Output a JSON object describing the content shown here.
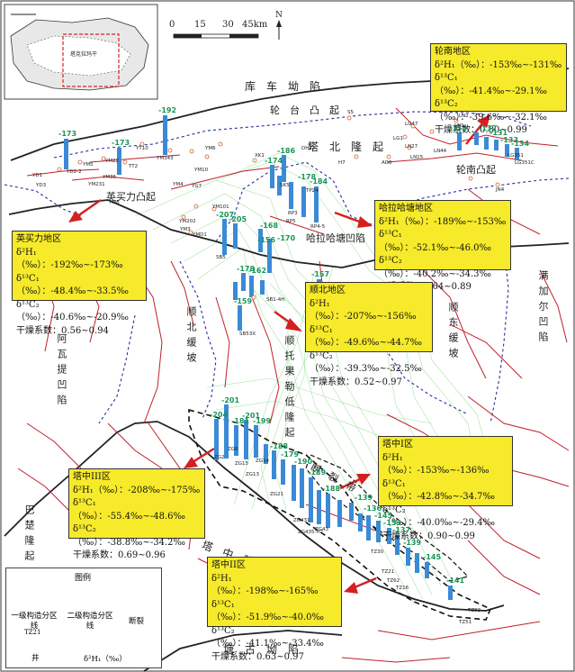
{
  "scale": {
    "ticks": [
      "0",
      "15",
      "30",
      "45km"
    ]
  },
  "north": "N",
  "regions": {
    "kuche": "库　车　坳　陷",
    "lunwa": "轮　台　凸　起",
    "tabei": "塔　北　隆　起",
    "halahatang_sag": "哈拉哈塘凹陷",
    "yingmaili_uplift": "英买力凸起",
    "lunnan_uplift": "轮南凸起",
    "manjiaer": "满加尔凹陷",
    "awati": "阿瓦提凹陷",
    "shunbei": "顺北缓坡",
    "shundong": "顺东缓坡",
    "shuntuo": "顺托果勒低隆起",
    "tazhong": "塔　中　隆　起",
    "bachu": "巴楚隆起",
    "tanggu": "塘　古　坳　陷",
    "fault_belt": "断　裂　带"
  },
  "boxes": [
    {
      "id": "lunnan",
      "title": "轮南地区",
      "h1": "δ²H₁（‰）：-153‰~-131‰",
      "c1": "δ¹³C₁（‰）：-41.4‰~-29.1‰",
      "c2": "δ¹³C₂（‰）：-39.6‰~-32.1‰",
      "dry": "干燥系数：0.80~0.99"
    },
    {
      "id": "halahatang",
      "title": "哈拉哈塘地区",
      "h1": "δ²H₁（‰）：-189‰~-153‰",
      "c1": "δ¹³C₁（‰）：-52.1‰~-46.0‰",
      "c2": "δ¹³C₂（‰）：-40.2‰~-34.3‰",
      "dry": "干燥系数：0.64~0.89"
    },
    {
      "id": "yingmaili",
      "title": "英买力地区",
      "h1": "δ²H₁（‰）：-192‰~-173‰",
      "c1": "δ¹³C₁（‰）：-48.4‰~-33.5‰",
      "c2": "δ¹³C₂（‰）：-40.6‰~-20.9‰",
      "dry": "干燥系数：0.56~0.94"
    },
    {
      "id": "shunbei",
      "title": "顺北地区",
      "h1": "δ²H₁（‰）：-207‰~-156‰",
      "c1": "δ¹³C₁（‰）：-49.6‰~-44.7‰",
      "c2": "δ¹³C₂（‰）：-39.3‰~-32.5‰",
      "dry": "干燥系数：0.52~0.97"
    },
    {
      "id": "tazhong1",
      "title": "塔中I区",
      "h1": "δ²H₁（‰）：-153‰~-136‰",
      "c1": "δ¹³C₁（‰）：-42.8‰~-34.7‰",
      "c2": "δ¹³C₂（‰）：-40.0‰~-29.4‰",
      "dry": "干燥系数：0.90~0.99"
    },
    {
      "id": "tazhong3",
      "title": "塔中III区",
      "h1": "δ²H₁（‰）：-208‰~-175‰",
      "c1": "δ¹³C₁（‰）：-55.4‰~-48.6‰",
      "c2": "δ¹³C₂（‰）：-38.8‰~-34.2‰",
      "dry": "干燥系数：0.69~0.96"
    },
    {
      "id": "tazhong2",
      "title": "塔中II区",
      "h1": "δ²H₁（‰）：-198‰~-165‰",
      "c1": "δ¹³C₁（‰）：-51.9‰~-40.0‰",
      "c2": "δ¹³C₂（‰）：-41.1‰~-33.4‰",
      "dry": "干燥系数：0.63~0.97"
    }
  ],
  "values": [
    "-192",
    "-173",
    "-173",
    "-186",
    "-174",
    "-178",
    "-184",
    "-207",
    "-205",
    "-168",
    "-170",
    "-156",
    "-178",
    "-162",
    "-157",
    "-159",
    "-153",
    "-132",
    "-131",
    "-133",
    "-134",
    "-201",
    "-204",
    "-181",
    "-201",
    "-199",
    "-188",
    "-179",
    "-190",
    "-189",
    "-188",
    "-139",
    "-136",
    "-145",
    "-153",
    "-137",
    "-139",
    "-145",
    "-141"
  ],
  "wells": [
    "YM343",
    "YT10",
    "TT2",
    "YD2-2",
    "YD1",
    "YD3",
    "YM5",
    "YM22",
    "YM35",
    "YM231",
    "YM6",
    "YM4",
    "YM8",
    "YM10",
    "YG7",
    "YM101",
    "YM202",
    "YM3",
    "YMD1",
    "XK1",
    "DH22",
    "S5",
    "H7",
    "AD6",
    "TP24",
    "SK5",
    "RP3",
    "RP5",
    "RP4-5",
    "SB5",
    "SB1-4H",
    "SB53X",
    "LG47",
    "LN1",
    "LN2",
    "LG1",
    "LN27",
    "LN15",
    "LN44",
    "LG351",
    "LG351C",
    "JN4",
    "ZG2",
    "ZG6",
    "ZG15",
    "ZG13",
    "ZG14",
    "ZG21",
    "ZG431",
    "ZG43",
    "ZG435-H2",
    "TZ21",
    "TZ51",
    "TZ62",
    "TZ83",
    "TZ30",
    "TZ16"
  ],
  "legend": {
    "title": "图例",
    "l1": "一级构造分区线",
    "l2": "二级构造分区线",
    "l3": "断裂",
    "well_label": "TZ21",
    "well": "井",
    "hist": "δ²H₁（‰）"
  },
  "inset": {
    "label": "塔克拉玛干"
  }
}
